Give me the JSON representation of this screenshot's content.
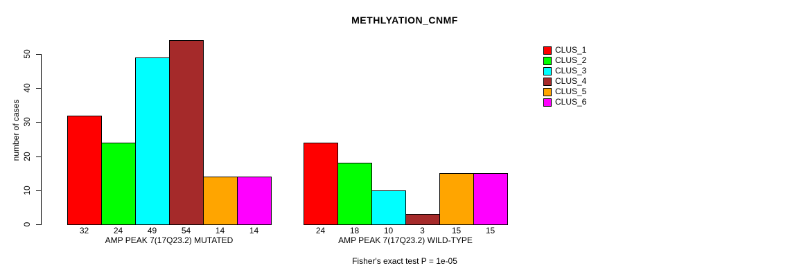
{
  "chart_data": {
    "type": "bar",
    "title": "METHLYATION_CNMF",
    "ylabel": "number of cases",
    "xlabel": "",
    "ylim": [
      0,
      54
    ],
    "yticks": [
      0,
      10,
      20,
      30,
      40,
      50
    ],
    "grid": false,
    "legend_position": "top-right",
    "clusters": [
      "CLUS_1",
      "CLUS_2",
      "CLUS_3",
      "CLUS_4",
      "CLUS_5",
      "CLUS_6"
    ],
    "cluster_colors": [
      "#FF0000",
      "#00FF00",
      "#00FFFF",
      "#A52A2A",
      "#FFA500",
      "#FF00FF"
    ],
    "groups": [
      {
        "label": "AMP PEAK 7(17Q23.2) MUTATED",
        "values": [
          32,
          24,
          49,
          54,
          14,
          14
        ]
      },
      {
        "label": "AMP PEAK 7(17Q23.2) WILD-TYPE",
        "values": [
          24,
          18,
          10,
          3,
          15,
          15
        ]
      }
    ],
    "annotation": "Fisher's exact test P = 1e-05"
  }
}
